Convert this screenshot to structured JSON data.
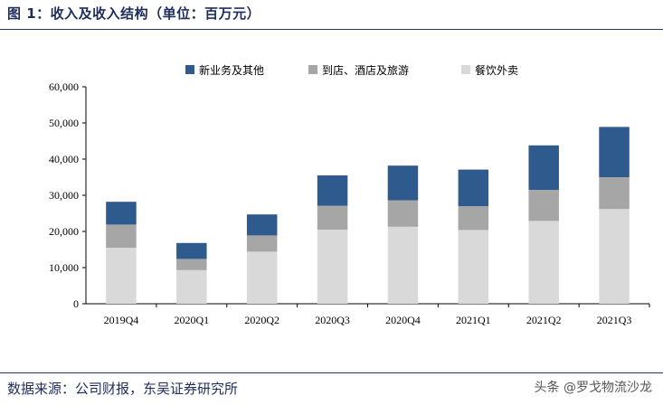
{
  "header": {
    "title": "图 1：收入及收入结构（单位：百万元）"
  },
  "footer": {
    "source": "数据来源：公司财报，东吴证券研究所",
    "watermark": "头条 @罗戈物流沙龙"
  },
  "chart_data": {
    "type": "bar",
    "stacked": true,
    "categories": [
      "2019Q4",
      "2020Q1",
      "2020Q2",
      "2020Q3",
      "2020Q4",
      "2021Q1",
      "2021Q2",
      "2021Q3"
    ],
    "series": [
      {
        "name": "餐饮外卖",
        "color": "#d9d9d9",
        "values": [
          15500,
          9300,
          14400,
          20500,
          21300,
          20400,
          22900,
          26200
        ]
      },
      {
        "name": "到店、酒店及旅游",
        "color": "#a6a6a6",
        "values": [
          6400,
          3100,
          4500,
          6600,
          7300,
          6600,
          8600,
          8800
        ]
      },
      {
        "name": "新业务及其他",
        "color": "#2e5a8e",
        "values": [
          6300,
          4400,
          5800,
          8400,
          9600,
          10100,
          12300,
          13900
        ]
      }
    ],
    "legend_order": [
      "新业务及其他",
      "到店、酒店及旅游",
      "餐饮外卖"
    ],
    "legend_position": "top",
    "y_ticks": [
      "0",
      "10,000",
      "20,000",
      "30,000",
      "40,000",
      "50,000",
      "60,000"
    ],
    "ylim": [
      0,
      60000
    ],
    "grid": false,
    "xlabel": "",
    "ylabel": ""
  }
}
